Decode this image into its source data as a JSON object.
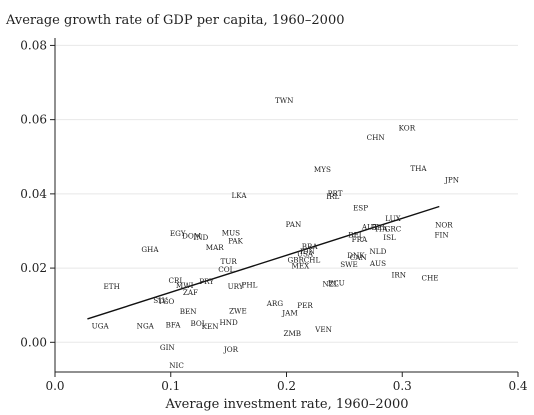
{
  "chart_data": {
    "type": "scatter",
    "title": "Average growth rate of GDP per capita, 1960–2000",
    "xlabel": "Average investment rate, 1960–2000",
    "ylabel": "",
    "xlim": [
      0,
      0.4
    ],
    "ylim": [
      -0.008,
      0.082
    ],
    "xticks": [
      {
        "value": 0.0,
        "label": "0.0"
      },
      {
        "value": 0.1,
        "label": "0.1"
      },
      {
        "value": 0.2,
        "label": "0.2"
      },
      {
        "value": 0.3,
        "label": "0.3"
      },
      {
        "value": 0.4,
        "label": "0.4"
      }
    ],
    "yticks": [
      {
        "value": 0.0,
        "label": "0.00"
      },
      {
        "value": 0.02,
        "label": "0.02"
      },
      {
        "value": 0.04,
        "label": "0.04"
      },
      {
        "value": 0.06,
        "label": "0.06"
      },
      {
        "value": 0.08,
        "label": "0.08"
      }
    ],
    "grid": true,
    "legend": "none",
    "fit_line": {
      "x": [
        0.028,
        0.332
      ],
      "y": [
        0.0063,
        0.0366
      ]
    },
    "points": [
      {
        "label": "TWN",
        "x": 0.198,
        "y": 0.0652
      },
      {
        "label": "KOR",
        "x": 0.304,
        "y": 0.0578
      },
      {
        "label": "CHN",
        "x": 0.277,
        "y": 0.0552
      },
      {
        "label": "THA",
        "x": 0.314,
        "y": 0.0468
      },
      {
        "label": "JPN",
        "x": 0.343,
        "y": 0.0438
      },
      {
        "label": "MYS",
        "x": 0.231,
        "y": 0.0465
      },
      {
        "label": "LKA",
        "x": 0.159,
        "y": 0.0395
      },
      {
        "label": "PRT",
        "x": 0.242,
        "y": 0.0401
      },
      {
        "label": "IRL",
        "x": 0.24,
        "y": 0.0393
      },
      {
        "label": "ESP",
        "x": 0.264,
        "y": 0.0362
      },
      {
        "label": "LUX",
        "x": 0.292,
        "y": 0.0334
      },
      {
        "label": "NOR",
        "x": 0.336,
        "y": 0.0316
      },
      {
        "label": "AUT",
        "x": 0.272,
        "y": 0.0311
      },
      {
        "label": "ITA",
        "x": 0.282,
        "y": 0.0305
      },
      {
        "label": "BEL",
        "x": 0.28,
        "y": 0.0309
      },
      {
        "label": "GRC",
        "x": 0.292,
        "y": 0.0305
      },
      {
        "label": "FIN",
        "x": 0.334,
        "y": 0.0289
      },
      {
        "label": "BEL",
        "x": 0.26,
        "y": 0.0289
      },
      {
        "label": "FRA",
        "x": 0.263,
        "y": 0.0277
      },
      {
        "label": "ISL",
        "x": 0.289,
        "y": 0.0283
      },
      {
        "label": "PAN",
        "x": 0.206,
        "y": 0.0317
      },
      {
        "label": "EGY",
        "x": 0.106,
        "y": 0.0293
      },
      {
        "label": "DOM",
        "x": 0.118,
        "y": 0.0286
      },
      {
        "label": "IND",
        "x": 0.126,
        "y": 0.0283
      },
      {
        "label": "MUS",
        "x": 0.152,
        "y": 0.0294
      },
      {
        "label": "PAK",
        "x": 0.156,
        "y": 0.0273
      },
      {
        "label": "MAR",
        "x": 0.138,
        "y": 0.0255
      },
      {
        "label": "GHA",
        "x": 0.082,
        "y": 0.025
      },
      {
        "label": "BRA",
        "x": 0.22,
        "y": 0.0258
      },
      {
        "label": "IDN",
        "x": 0.218,
        "y": 0.0245
      },
      {
        "label": "USA",
        "x": 0.216,
        "y": 0.0238
      },
      {
        "label": "NLD",
        "x": 0.279,
        "y": 0.0245
      },
      {
        "label": "DNK",
        "x": 0.26,
        "y": 0.0234
      },
      {
        "label": "CAN",
        "x": 0.262,
        "y": 0.0228
      },
      {
        "label": "GBR",
        "x": 0.208,
        "y": 0.0222
      },
      {
        "label": "CHL",
        "x": 0.222,
        "y": 0.0222
      },
      {
        "label": "SWE",
        "x": 0.254,
        "y": 0.021
      },
      {
        "label": "AUS",
        "x": 0.279,
        "y": 0.0212
      },
      {
        "label": "MEX",
        "x": 0.212,
        "y": 0.0206
      },
      {
        "label": "TUR",
        "x": 0.15,
        "y": 0.0218
      },
      {
        "label": "COL",
        "x": 0.148,
        "y": 0.0196
      },
      {
        "label": "IRN",
        "x": 0.297,
        "y": 0.0181
      },
      {
        "label": "CHE",
        "x": 0.324,
        "y": 0.0173
      },
      {
        "label": "NZL",
        "x": 0.238,
        "y": 0.0157
      },
      {
        "label": "ECU",
        "x": 0.243,
        "y": 0.016
      },
      {
        "label": "CRI",
        "x": 0.104,
        "y": 0.0166
      },
      {
        "label": "PRY",
        "x": 0.131,
        "y": 0.0164
      },
      {
        "label": "PHL",
        "x": 0.168,
        "y": 0.0155
      },
      {
        "label": "URY",
        "x": 0.156,
        "y": 0.0151
      },
      {
        "label": "MWI",
        "x": 0.112,
        "y": 0.0153
      },
      {
        "label": "ZAF",
        "x": 0.117,
        "y": 0.0134
      },
      {
        "label": "ETH",
        "x": 0.049,
        "y": 0.0151
      },
      {
        "label": "SLV",
        "x": 0.091,
        "y": 0.0112
      },
      {
        "label": "TGO",
        "x": 0.096,
        "y": 0.011
      },
      {
        "label": "ZWE",
        "x": 0.158,
        "y": 0.0085
      },
      {
        "label": "ARG",
        "x": 0.19,
        "y": 0.0104
      },
      {
        "label": "PER",
        "x": 0.216,
        "y": 0.0099
      },
      {
        "label": "JAM",
        "x": 0.203,
        "y": 0.0079
      },
      {
        "label": "BEN",
        "x": 0.115,
        "y": 0.0083
      },
      {
        "label": "HND",
        "x": 0.15,
        "y": 0.0054
      },
      {
        "label": "BOL",
        "x": 0.124,
        "y": 0.0051
      },
      {
        "label": "KEN",
        "x": 0.134,
        "y": 0.0042
      },
      {
        "label": "BFA",
        "x": 0.102,
        "y": 0.0047
      },
      {
        "label": "NGA",
        "x": 0.078,
        "y": 0.0044
      },
      {
        "label": "UGA",
        "x": 0.039,
        "y": 0.0044
      },
      {
        "label": "VEN",
        "x": 0.232,
        "y": 0.0034
      },
      {
        "label": "ZMB",
        "x": 0.205,
        "y": 0.0024
      },
      {
        "label": "GIN",
        "x": 0.097,
        "y": -0.0014
      },
      {
        "label": "JOR",
        "x": 0.152,
        "y": -0.0019
      },
      {
        "label": "NIC",
        "x": 0.105,
        "y": -0.0063
      }
    ]
  }
}
